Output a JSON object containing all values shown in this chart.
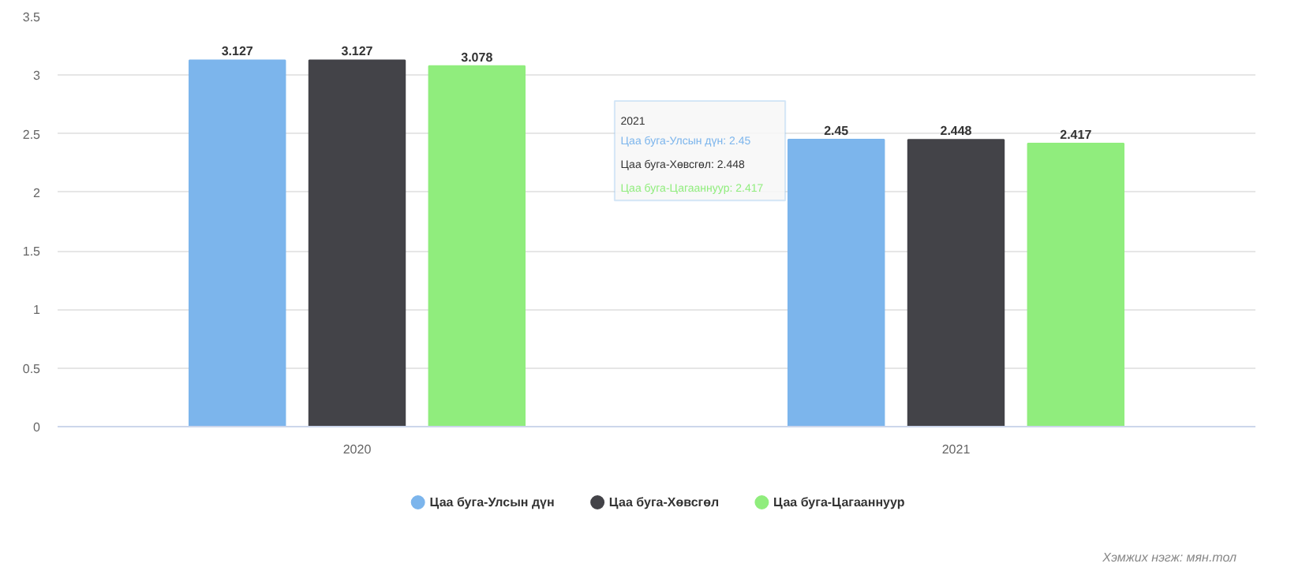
{
  "chart_data": {
    "type": "bar",
    "categories": [
      "2020",
      "2021"
    ],
    "series": [
      {
        "name": "Цаа буга-Улсын дүн",
        "color": "#7cb5ec",
        "values": [
          3.127,
          2.45
        ]
      },
      {
        "name": "Цаа буга-Хөвсгөл",
        "color": "#434348",
        "values": [
          3.127,
          2.448
        ]
      },
      {
        "name": "Цаа буга-Цагааннуур",
        "color": "#90ed7d",
        "values": [
          3.078,
          2.417
        ]
      }
    ],
    "ylim": [
      0,
      3.5
    ],
    "yticks": [
      0,
      0.5,
      1,
      1.5,
      2,
      2.5,
      3,
      3.5
    ],
    "grid": "y",
    "data_labels": true,
    "legend": "bottom",
    "annotations": [
      "2021",
      "Цаа буга-Улсын дүн: 2.45",
      "Цаа буга-Хөвсгөл: 2.448",
      "Цаа буга-Цагааннуур: 2.417",
      "Хэмжих нэгж: мян.тол"
    ]
  }
}
